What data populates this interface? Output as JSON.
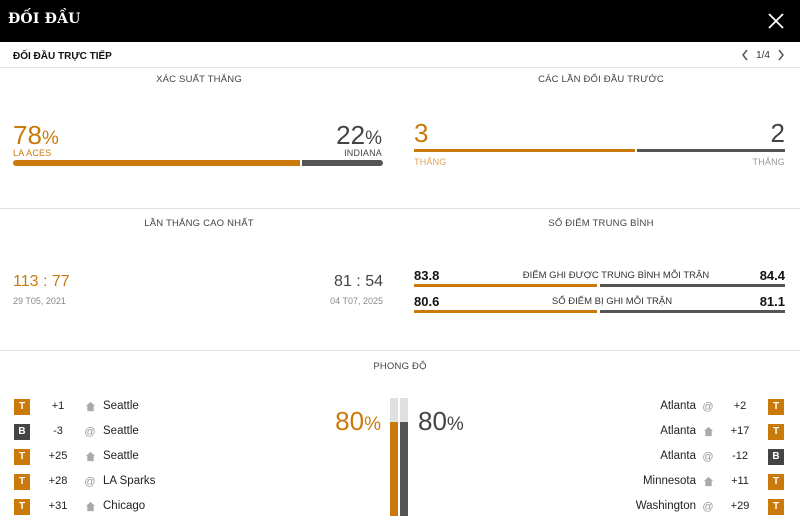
{
  "header": {
    "title": "ĐỐI ĐẦU"
  },
  "subheader": {
    "label": "ĐỐI ĐẦU TRỰC TIẾP",
    "page": "1/4"
  },
  "win_prob": {
    "title": "XÁC SUẤT THẮNG",
    "left": {
      "value": "78",
      "team": "LA ACES",
      "fraction": 0.78
    },
    "right": {
      "value": "22",
      "team": "INDIANA",
      "fraction": 0.22
    },
    "pct": "%"
  },
  "previous": {
    "title": "CÁC LẦN ĐỐI ĐẦU TRƯỚC",
    "left": {
      "value": "3",
      "label": "THẮNG"
    },
    "right": {
      "value": "2",
      "label": "THẮNG"
    },
    "left_fraction": 0.6
  },
  "biggest_win": {
    "title": "LẦN THẮNG CAO NHẤT",
    "left": {
      "score_a": "113",
      "score_b": "77",
      "date": "29 T05, 2021"
    },
    "right": {
      "score_a": "81",
      "score_b": "54",
      "date": "04 T07, 2025"
    },
    "sep": ":"
  },
  "avg_points": {
    "title": "SỐ ĐIỂM TRUNG BÌNH",
    "rows": [
      {
        "left": "83.8",
        "label": "ĐIỂM GHI ĐƯỢC TRUNG BÌNH MỖI TRẬN",
        "right": "84.4"
      },
      {
        "left": "80.6",
        "label": "SỐ ĐIỂM BỊ GHI MỖI TRẬN",
        "right": "81.1"
      }
    ]
  },
  "form": {
    "title": "PHONG ĐỘ",
    "left_pct": "80",
    "right_pct": "80",
    "pct": "%",
    "left_fraction": 0.8,
    "right_fraction": 0.8,
    "left_games": [
      {
        "result": "T",
        "diff": "+1",
        "venue": "home",
        "opponent": "Seattle"
      },
      {
        "result": "B",
        "diff": "-3",
        "venue": "away",
        "opponent": "Seattle"
      },
      {
        "result": "T",
        "diff": "+25",
        "venue": "home",
        "opponent": "Seattle"
      },
      {
        "result": "T",
        "diff": "+28",
        "venue": "away",
        "opponent": "LA Sparks"
      },
      {
        "result": "T",
        "diff": "+31",
        "venue": "home",
        "opponent": "Chicago"
      }
    ],
    "right_games": [
      {
        "result": "T",
        "diff": "+2",
        "venue": "away",
        "opponent": "Atlanta"
      },
      {
        "result": "T",
        "diff": "+17",
        "venue": "home",
        "opponent": "Atlanta"
      },
      {
        "result": "B",
        "diff": "-12",
        "venue": "away",
        "opponent": "Atlanta"
      },
      {
        "result": "T",
        "diff": "+11",
        "venue": "home",
        "opponent": "Minnesota"
      },
      {
        "result": "T",
        "diff": "+29",
        "venue": "away",
        "opponent": "Washington"
      }
    ]
  },
  "colors": {
    "accent": "#c97a0b",
    "dark": "#444444",
    "topbar": "#000000"
  }
}
